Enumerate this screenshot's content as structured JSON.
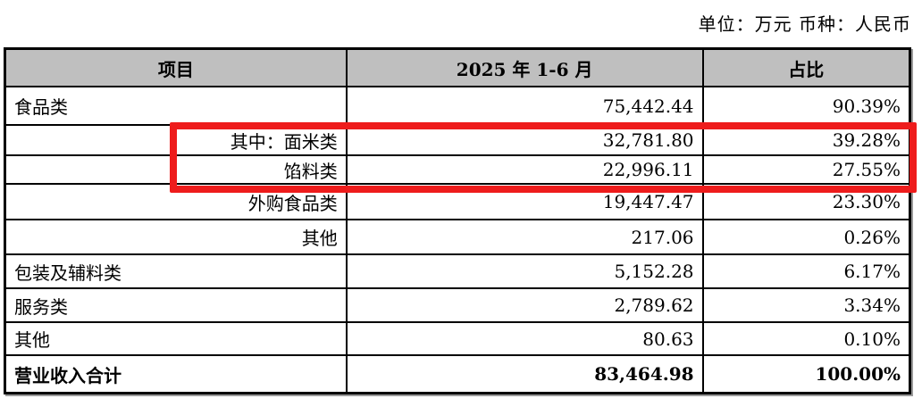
{
  "caption": "单位：万元 币种：人民币",
  "table": {
    "headers": [
      "项目",
      "2025 年 1-6 月",
      "占比"
    ],
    "rows": [
      {
        "label": "食品类",
        "value": "75,442.44",
        "pct": "90.39%"
      },
      {
        "label": "其中：面米类",
        "value": "32,781.80",
        "pct": "39.28%"
      },
      {
        "label": "馅料类",
        "value": "22,996.11",
        "pct": "27.55%"
      },
      {
        "label": "外购食品类",
        "value": "19,447.47",
        "pct": "23.30%"
      },
      {
        "label": "其他",
        "value": "217.06",
        "pct": "0.26%"
      },
      {
        "label": "包装及辅料类",
        "value": "5,152.28",
        "pct": "6.17%"
      },
      {
        "label": "服务类",
        "value": "2,789.62",
        "pct": "3.34%"
      },
      {
        "label": "其他",
        "value": "80.63",
        "pct": "0.10%"
      },
      {
        "label": "营业收入合计",
        "value": "83,464.98",
        "pct": "100.00%"
      }
    ]
  },
  "colors": {
    "header_bg": "#bfbfbf",
    "annotation_red": "#ee1c1c"
  }
}
